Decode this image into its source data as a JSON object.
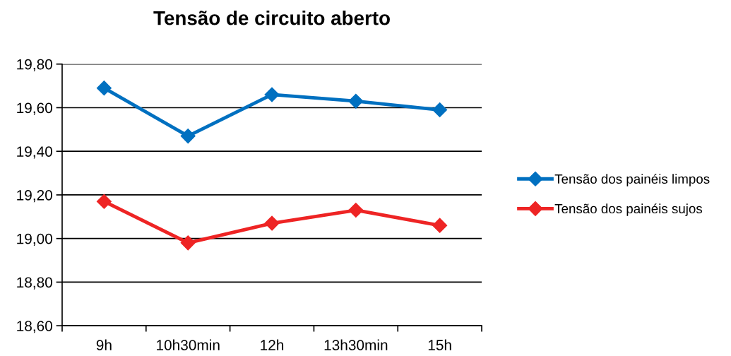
{
  "chart_data": {
    "type": "line",
    "title": "Tensão de circuito aberto",
    "categories": [
      "9h",
      "10h30min",
      "12h",
      "13h30min",
      "15h"
    ],
    "series": [
      {
        "name": "Tensão dos painéis limpos",
        "color": "#0070c0",
        "values": [
          19.69,
          19.47,
          19.66,
          19.63,
          19.59
        ]
      },
      {
        "name": "Tensão dos painéis sujos",
        "color": "#ee2424",
        "values": [
          19.17,
          18.98,
          19.07,
          19.13,
          19.06
        ]
      }
    ],
    "ylim": [
      18.6,
      19.8
    ],
    "yticks": [
      {
        "value": 18.6,
        "label": "18,60"
      },
      {
        "value": 18.8,
        "label": "18,80"
      },
      {
        "value": 19.0,
        "label": "19,00"
      },
      {
        "value": 19.2,
        "label": "19,20"
      },
      {
        "value": 19.4,
        "label": "19,40"
      },
      {
        "value": 19.6,
        "label": "19,60"
      },
      {
        "value": 19.8,
        "label": "19,80"
      }
    ],
    "grid": "y",
    "legend": "right",
    "marker": "diamond",
    "line_style": "solid"
  }
}
